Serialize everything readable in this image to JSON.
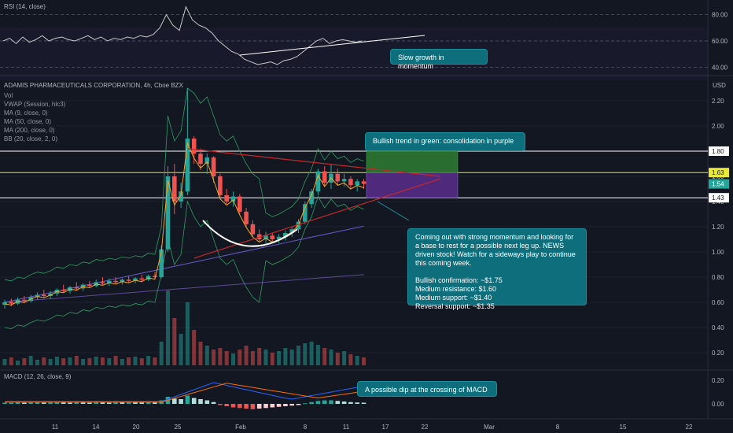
{
  "rsi_pane": {
    "title": "RSI (14, close)",
    "ticks": [
      "80.00",
      "60.00",
      "40.00"
    ],
    "annotation": "Slow growth in momentum"
  },
  "price_pane": {
    "title": "ADAMIS PHARMACEUTICALS CORPORATION, 4h, Cboe BZX",
    "currency": "USD",
    "indicators": [
      "Vol",
      "VWAP (Session, hlc3)",
      "MA (9, close, 0)",
      "MA (50, close, 0)",
      "MA (200, close, 0)",
      "BB (20, close, 2, 0)"
    ],
    "ticks": [
      "2.20",
      "2.00",
      "1.80",
      "1.60",
      "1.40",
      "1.20",
      "1.00",
      "0.80",
      "0.60",
      "0.40",
      "0.20"
    ],
    "price_labels": [
      "1.80",
      "1.63",
      "1.54",
      "1.43"
    ],
    "annotation_trend": "Bullish trend in green: consolidation in purple",
    "annotation_main": [
      "Coming out with strong momentum and looking for",
      "a base to rest for a possible next leg up. NEWS",
      "driven stock! Watch for a sideways play to continue",
      "this coming week.",
      "",
      "Bullish confirmation: ~$1.75",
      "Medium resistance: $1.60",
      "Medium support: ~$1.40",
      "Reversal support: ~$1.35"
    ]
  },
  "macd_pane": {
    "title": "MACD (12, 26, close, 9)",
    "ticks": [
      "0.20",
      "0.00"
    ],
    "annotation": "A possible dip at the crossing of MACD"
  },
  "time_axis": [
    "11",
    "14",
    "20",
    "25",
    "Feb",
    "8",
    "11",
    "17",
    "22",
    "Mar",
    "8",
    "15",
    "22"
  ],
  "colors": {
    "up": "#26a69a",
    "down": "#ef5350",
    "green_box": "#2e7d32",
    "purple_box": "#5b2d8c",
    "ma9": "#f5a623",
    "ma50": "#6a5acd",
    "ma200": "#7b5fc4",
    "bb": "#2f9e62",
    "note_bg": "#0e6e7c",
    "yellow_line": "#e8e83a",
    "trend": "#c62828"
  },
  "chart_data": {
    "type": "candlestick",
    "ylim": [
      0.1,
      2.4
    ],
    "levels": [
      1.8,
      1.63,
      1.43
    ],
    "last_price": 1.54,
    "candles": [
      [
        0.58,
        0.62,
        0.55,
        0.6
      ],
      [
        0.6,
        0.63,
        0.57,
        0.59
      ],
      [
        0.59,
        0.64,
        0.58,
        0.62
      ],
      [
        0.62,
        0.65,
        0.6,
        0.61
      ],
      [
        0.61,
        0.66,
        0.6,
        0.64
      ],
      [
        0.64,
        0.68,
        0.62,
        0.66
      ],
      [
        0.66,
        0.7,
        0.64,
        0.65
      ],
      [
        0.65,
        0.69,
        0.63,
        0.67
      ],
      [
        0.67,
        0.71,
        0.65,
        0.7
      ],
      [
        0.7,
        0.74,
        0.68,
        0.69
      ],
      [
        0.69,
        0.73,
        0.67,
        0.72
      ],
      [
        0.72,
        0.76,
        0.7,
        0.71
      ],
      [
        0.71,
        0.75,
        0.69,
        0.74
      ],
      [
        0.74,
        0.77,
        0.72,
        0.73
      ],
      [
        0.73,
        0.78,
        0.72,
        0.76
      ],
      [
        0.76,
        0.8,
        0.74,
        0.75
      ],
      [
        0.75,
        0.79,
        0.73,
        0.77
      ],
      [
        0.77,
        0.8,
        0.75,
        0.76
      ],
      [
        0.76,
        0.79,
        0.74,
        0.78
      ],
      [
        0.78,
        0.81,
        0.76,
        0.77
      ],
      [
        0.77,
        0.8,
        0.75,
        0.79
      ],
      [
        0.79,
        0.82,
        0.76,
        0.78
      ],
      [
        0.78,
        0.82,
        0.77,
        0.81
      ],
      [
        0.81,
        0.84,
        0.78,
        0.8
      ],
      [
        0.8,
        1.05,
        0.79,
        1.02
      ],
      [
        1.02,
        1.68,
        1.0,
        1.6
      ],
      [
        1.6,
        1.7,
        1.3,
        1.4
      ],
      [
        1.4,
        1.55,
        1.35,
        1.48
      ],
      [
        1.48,
        2.3,
        1.45,
        1.9
      ],
      [
        1.9,
        1.92,
        1.7,
        1.78
      ],
      [
        1.78,
        1.82,
        1.65,
        1.7
      ],
      [
        1.7,
        1.78,
        1.62,
        1.75
      ],
      [
        1.75,
        1.76,
        1.55,
        1.6
      ],
      [
        1.6,
        1.62,
        1.42,
        1.45
      ],
      [
        1.45,
        1.5,
        1.38,
        1.4
      ],
      [
        1.4,
        1.48,
        1.36,
        1.44
      ],
      [
        1.44,
        1.46,
        1.3,
        1.32
      ],
      [
        1.32,
        1.35,
        1.2,
        1.22
      ],
      [
        1.22,
        1.25,
        1.12,
        1.14
      ],
      [
        1.14,
        1.18,
        1.08,
        1.1
      ],
      [
        1.1,
        1.16,
        1.07,
        1.13
      ],
      [
        1.13,
        1.15,
        1.08,
        1.1
      ],
      [
        1.1,
        1.14,
        1.07,
        1.12
      ],
      [
        1.12,
        1.17,
        1.09,
        1.15
      ],
      [
        1.15,
        1.2,
        1.12,
        1.18
      ],
      [
        1.18,
        1.26,
        1.15,
        1.24
      ],
      [
        1.24,
        1.4,
        1.22,
        1.38
      ],
      [
        1.38,
        1.5,
        1.35,
        1.48
      ],
      [
        1.48,
        1.66,
        1.45,
        1.64
      ],
      [
        1.64,
        1.68,
        1.52,
        1.55
      ],
      [
        1.55,
        1.7,
        1.5,
        1.62
      ],
      [
        1.62,
        1.66,
        1.53,
        1.56
      ],
      [
        1.56,
        1.62,
        1.52,
        1.58
      ],
      [
        1.58,
        1.6,
        1.5,
        1.53
      ],
      [
        1.53,
        1.58,
        1.48,
        1.56
      ],
      [
        1.56,
        1.58,
        1.5,
        1.54
      ]
    ]
  }
}
